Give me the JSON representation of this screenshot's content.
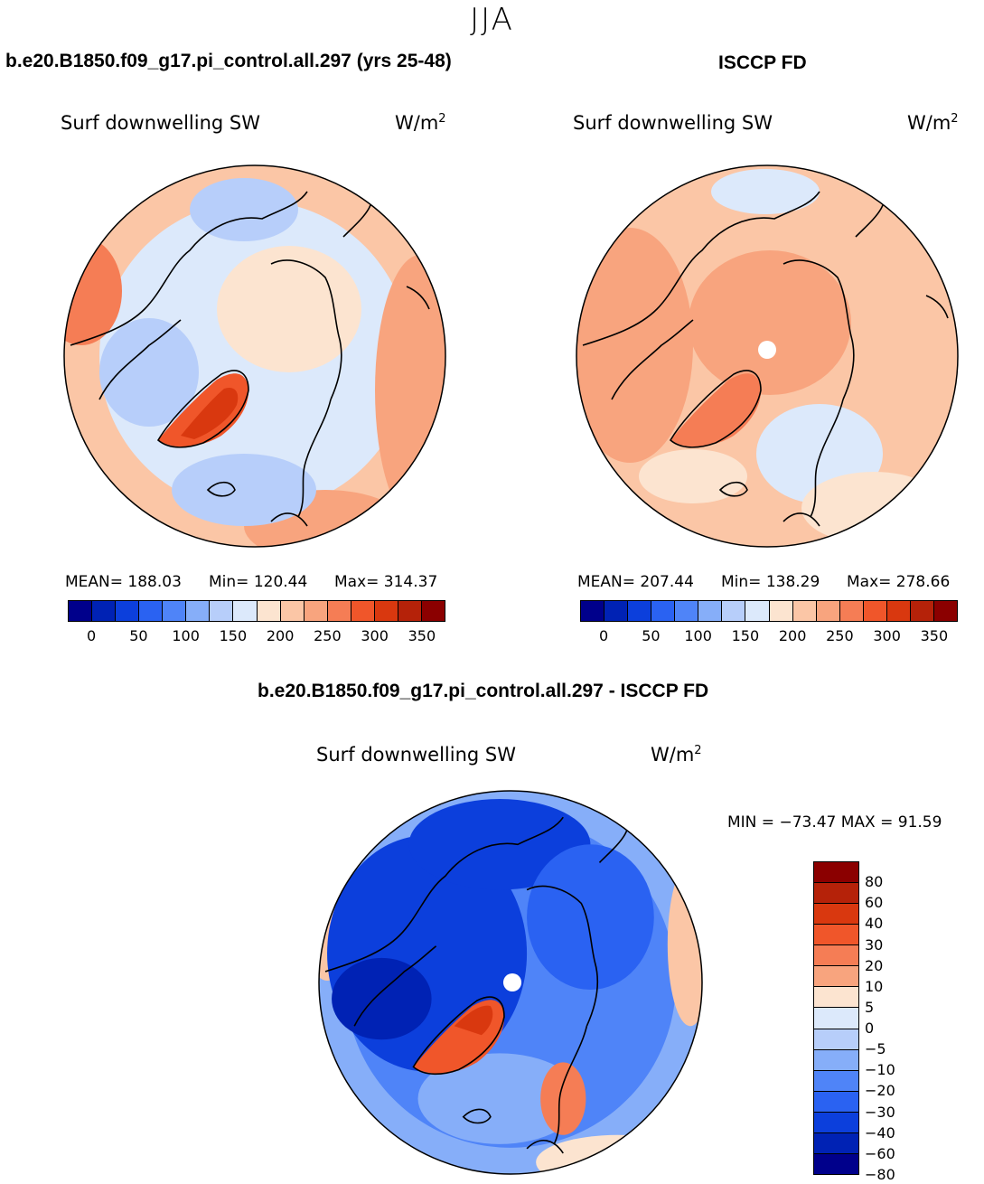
{
  "season": "JJA",
  "palette_abs": [
    "#00008b",
    "#0022b4",
    "#0c3fdc",
    "#2a62f2",
    "#4f84f8",
    "#86aef9",
    "#b7cefa",
    "#dce9fb",
    "#fce4d0",
    "#fbc6a6",
    "#f8a47e",
    "#f57d55",
    "#f0562a",
    "#d9380f",
    "#b52209",
    "#8b0000"
  ],
  "palette_diff": [
    "#8b0000",
    "#b52209",
    "#d9380f",
    "#f0562a",
    "#f57d55",
    "#f8a47e",
    "#fce4d0",
    "#dce9fb",
    "#b7cefa",
    "#86aef9",
    "#4f84f8",
    "#2a62f2",
    "#0c3fdc",
    "#0022b4",
    "#00008b"
  ],
  "chart_data": [
    {
      "type": "heatmap",
      "panel_title": "b.e20.B1850.f09_g17.pi_control.all.297 (yrs 25-48)",
      "variable": "Surf downwelling SW",
      "units": "W/m",
      "units_exp": "2",
      "stats": {
        "mean": "MEAN= 188.03",
        "min": "Min= 120.44",
        "max": "Max= 314.37"
      },
      "colorbar_ticks": [
        "0",
        "50",
        "100",
        "150",
        "200",
        "250",
        "300",
        "350"
      ],
      "projection": "north polar stereographic"
    },
    {
      "type": "heatmap",
      "panel_title": "ISCCP FD",
      "variable": "Surf downwelling SW",
      "units": "W/m",
      "units_exp": "2",
      "stats": {
        "mean": "MEAN= 207.44",
        "min": "Min= 138.29",
        "max": "Max= 278.66"
      },
      "colorbar_ticks": [
        "0",
        "50",
        "100",
        "150",
        "200",
        "250",
        "300",
        "350"
      ],
      "projection": "north polar stereographic"
    },
    {
      "type": "heatmap",
      "panel_title": "b.e20.B1850.f09_g17.pi_control.all.297 - ISCCP FD",
      "variable": "Surf downwelling SW",
      "units": "W/m",
      "units_exp": "2",
      "stats": {
        "min_max": "MIN = −73.47 MAX =  91.59"
      },
      "colorbar_levels": [
        "80",
        "60",
        "40",
        "30",
        "20",
        "10",
        "5",
        "0",
        "−5",
        "−10",
        "−20",
        "−30",
        "−40",
        "−60",
        "−80"
      ],
      "projection": "north polar stereographic"
    }
  ]
}
